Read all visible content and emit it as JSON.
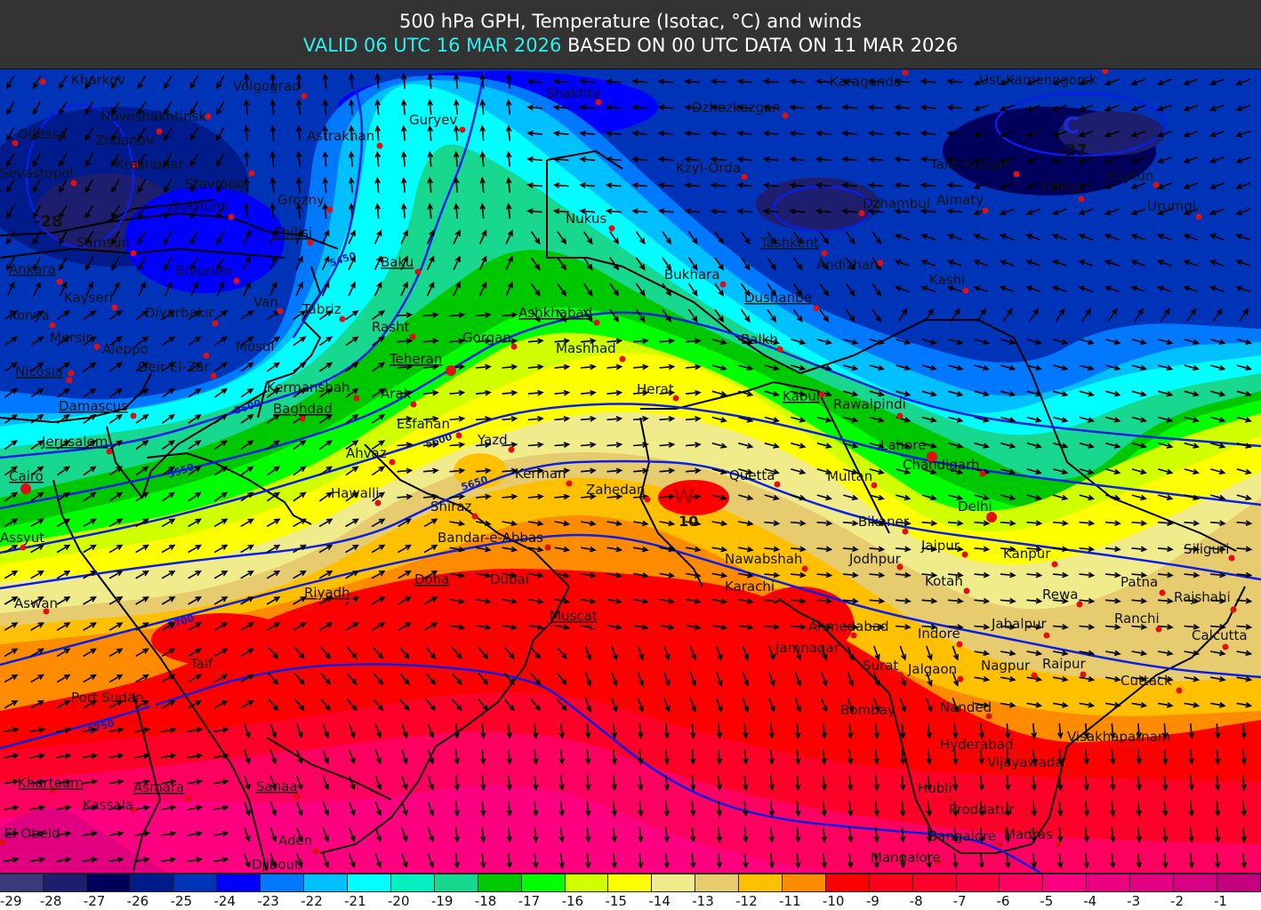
{
  "header": {
    "title": "500 hPa GPH, Temperature (Isotac, °C) and winds",
    "valid": "VALID 06 UTC 16 MAR 2026",
    "based_on": " BASED ON 00 UTC DATA ON 11 MAR 2026"
  },
  "legend": {
    "unit": "°C",
    "levels": [
      {
        "value": "-29",
        "color": "#3a3a7c"
      },
      {
        "value": "-28",
        "color": "#1e1e6e"
      },
      {
        "value": "-27",
        "color": "#00005c"
      },
      {
        "value": "-26",
        "color": "#001c8c"
      },
      {
        "value": "-25",
        "color": "#0034b8"
      },
      {
        "value": "-24",
        "color": "#0000ff"
      },
      {
        "value": "-23",
        "color": "#0078ff"
      },
      {
        "value": "-22",
        "color": "#00c0ff"
      },
      {
        "value": "-21",
        "color": "#00ffff"
      },
      {
        "value": "-20",
        "color": "#00f0c0"
      },
      {
        "value": "-19",
        "color": "#18d890"
      },
      {
        "value": "-18",
        "color": "#00c800"
      },
      {
        "value": "-17",
        "color": "#00ff00"
      },
      {
        "value": "-16",
        "color": "#d0ff00"
      },
      {
        "value": "-15",
        "color": "#ffff00"
      },
      {
        "value": "-14",
        "color": "#f0ec8c"
      },
      {
        "value": "-13",
        "color": "#e6cc6e"
      },
      {
        "value": "-12",
        "color": "#ffc000"
      },
      {
        "value": "-11",
        "color": "#ff8c00"
      },
      {
        "value": "-10",
        "color": "#ff0000"
      },
      {
        "value": "-9",
        "color": "#ff0018"
      },
      {
        "value": "-8",
        "color": "#ff0028"
      },
      {
        "value": "-7",
        "color": "#ff0040"
      },
      {
        "value": "-6",
        "color": "#ff0060"
      },
      {
        "value": "-5",
        "color": "#ff0080"
      },
      {
        "value": "-4",
        "color": "#ec0080"
      },
      {
        "value": "-3",
        "color": "#e00080"
      },
      {
        "value": "-2",
        "color": "#d40080"
      },
      {
        "value": "-1",
        "color": "#c40080"
      }
    ]
  },
  "map": {
    "contour_color": "#0a1ee6",
    "contours": [
      "5450",
      "5500",
      "5550",
      "5600",
      "5650",
      "5700",
      "5750"
    ],
    "markers": {
      "low_center": "C",
      "low_temp": "-27",
      "nw_temp": "-28",
      "warm_center": "W",
      "warm_temp": "10"
    },
    "cities": [
      "Kharkov",
      "Volgograd",
      "Shakhty",
      "Dzhezkazgan",
      "Karaganda",
      "Ust-Kamenogorsk",
      "Novoshakhtinsk",
      "Odessa",
      "Zhdanov",
      "Guryev",
      "Astrakhan",
      "Krasnodar",
      "Sevastopol",
      "Stavropol",
      "Kzyl-Orda",
      "Taldi-Kurgan",
      "Kuytun",
      "Sukhumi",
      "Grozny",
      "Nukus",
      "Dzhambul",
      "Almaty",
      "Yining",
      "Urumqi",
      "Tashkent",
      "Tbilisi",
      "Samsun",
      "Andizhan",
      "Baku",
      "Erzurum",
      "Kashi",
      "Bukhara",
      "Ankara",
      "Dushanbe",
      "Kayseri",
      "Van",
      "Tabriz",
      "Konya",
      "Diyarbakir",
      "Ashkhabad",
      "Rasht",
      "Mersin",
      "Gorgan",
      "Balkh",
      "Aleppo",
      "Mosul",
      "Mashhad",
      "Nicosia",
      "Deir El-Zar",
      "Teheran",
      "Herat",
      "Kermanshah",
      "Arak",
      "Kabul",
      "Rawalpindi",
      "Damascus",
      "Baghdad",
      "Esfahan",
      "Yazd",
      "Lahore",
      "Jerusalem",
      "Ahvaz",
      "Chandigarh",
      "Cairo",
      "Kerman",
      "Quetta",
      "Multan",
      "Zahedan",
      "Hawalli",
      "Delhi",
      "Shiraz",
      "Bikaner",
      "Assyut",
      "Bandar-e-Abbas",
      "Jaipur",
      "Siliguri",
      "Kanpur",
      "Nawabshah",
      "Jodhpur",
      "Doha",
      "Dubai",
      "Kotah",
      "Patna",
      "Karachi",
      "Riyadh",
      "Rewa",
      "Rajshahi",
      "Aswan",
      "Muscat",
      "Ranchi",
      "Ahmedabad",
      "Jabalpur",
      "Indore",
      "Calcutta",
      "Jamnagar",
      "Taif",
      "Surat",
      "Jalgaon",
      "Nagpur",
      "Raipur",
      "Cuttack",
      "Port Sudan",
      "Bombay",
      "Nanded",
      "Visakhapatnam",
      "Hyderabad",
      "Vijayawada",
      "Khartoum",
      "Asmara",
      "Sanaa",
      "Hubli",
      "Kassala",
      "Proddatur",
      "El Obeid",
      "Bangalore",
      "Madras",
      "Aden",
      "Mangalore",
      "Djibouti"
    ]
  }
}
